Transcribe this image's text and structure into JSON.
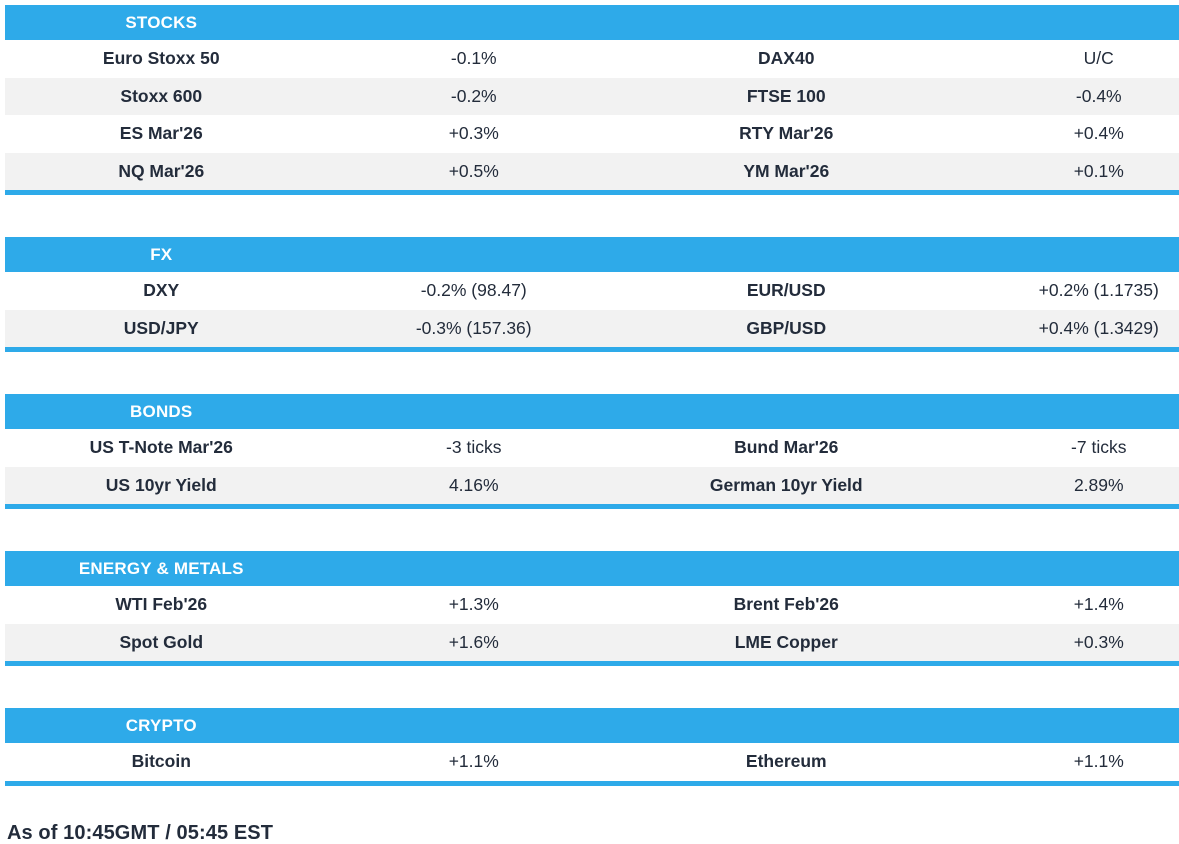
{
  "palette": {
    "accent": "#2EAAE9",
    "alt_row": "#F2F2F2",
    "text": "#232C3B",
    "header_text": "#FFFFFF"
  },
  "chart_data": [
    {
      "type": "table",
      "title": "STOCKS",
      "rows": [
        [
          "Euro Stoxx 50",
          "-0.1%",
          "DAX40",
          "U/C"
        ],
        [
          "Stoxx 600",
          "-0.2%",
          "FTSE 100",
          "-0.4%"
        ],
        [
          "ES Mar'26",
          "+0.3%",
          "RTY Mar'26",
          "+0.4%"
        ],
        [
          "NQ Mar'26",
          "+0.5%",
          "YM Mar'26",
          "+0.1%"
        ]
      ]
    },
    {
      "type": "table",
      "title": "FX",
      "rows": [
        [
          "DXY",
          "-0.2% (98.47)",
          "EUR/USD",
          "+0.2% (1.1735)"
        ],
        [
          "USD/JPY",
          "-0.3% (157.36)",
          "GBP/USD",
          "+0.4% (1.3429)"
        ]
      ]
    },
    {
      "type": "table",
      "title": "BONDS",
      "rows": [
        [
          "US T-Note Mar'26",
          "-3 ticks",
          "Bund Mar'26",
          "-7 ticks"
        ],
        [
          "US 10yr Yield",
          "4.16%",
          "German 10yr Yield",
          "2.89%"
        ]
      ]
    },
    {
      "type": "table",
      "title": "ENERGY & METALS",
      "rows": [
        [
          "WTI Feb'26",
          "+1.3%",
          "Brent Feb'26",
          "+1.4%"
        ],
        [
          "Spot Gold",
          "+1.6%",
          "LME Copper",
          "+0.3%"
        ]
      ]
    },
    {
      "type": "table",
      "title": "CRYPTO",
      "rows": [
        [
          "Bitcoin",
          "+1.1%",
          "Ethereum",
          "+1.1%"
        ]
      ]
    }
  ],
  "footer": {
    "as_of": "As of 10:45GMT / 05:45 EST"
  }
}
